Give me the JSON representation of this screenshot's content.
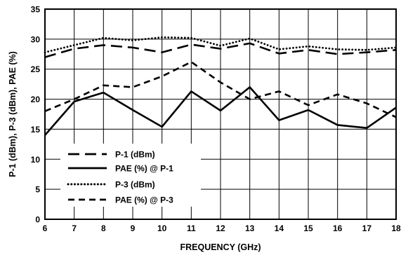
{
  "chart_data": {
    "type": "line",
    "xlabel": "FREQUENCY (GHz)",
    "ylabel": "P-1 (dBm), P-3 (dBm), PAE (%)",
    "xlim": [
      6,
      18
    ],
    "ylim": [
      0,
      35
    ],
    "x_ticks": [
      "6",
      "7",
      "8",
      "9",
      "10",
      "11",
      "12",
      "13",
      "14",
      "15",
      "16",
      "17",
      "18"
    ],
    "y_ticks": [
      "0",
      "5",
      "10",
      "15",
      "20",
      "25",
      "30",
      "35"
    ],
    "grid": true,
    "legend_position": "bottom-left",
    "x": [
      6,
      7,
      8,
      9,
      10,
      11,
      12,
      13,
      14,
      15,
      16,
      17,
      18
    ],
    "series": [
      {
        "name": "P-1 (dBm)",
        "style": "long-dash",
        "color": "#000000",
        "values": [
          27.0,
          28.4,
          29.0,
          28.6,
          27.8,
          29.1,
          28.4,
          29.3,
          27.6,
          28.2,
          27.5,
          27.8,
          28.2
        ]
      },
      {
        "name": "PAE (%) @ P-1",
        "style": "solid",
        "color": "#000000",
        "values": [
          14.0,
          19.6,
          21.1,
          18.2,
          15.4,
          21.3,
          18.1,
          22.0,
          16.5,
          18.2,
          15.7,
          15.2,
          18.6
        ]
      },
      {
        "name": "P-3 (dBm)",
        "style": "dotted",
        "color": "#000000",
        "values": [
          27.8,
          29.0,
          30.2,
          29.8,
          30.3,
          30.2,
          28.9,
          30.1,
          28.3,
          28.8,
          28.3,
          28.2,
          28.6
        ]
      },
      {
        "name": "PAE (%) @ P-3",
        "style": "short-dash",
        "color": "#000000",
        "values": [
          18.0,
          20.0,
          22.3,
          22.0,
          23.8,
          26.2,
          22.8,
          20.0,
          21.3,
          19.0,
          20.8,
          19.3,
          17.0
        ]
      }
    ]
  }
}
